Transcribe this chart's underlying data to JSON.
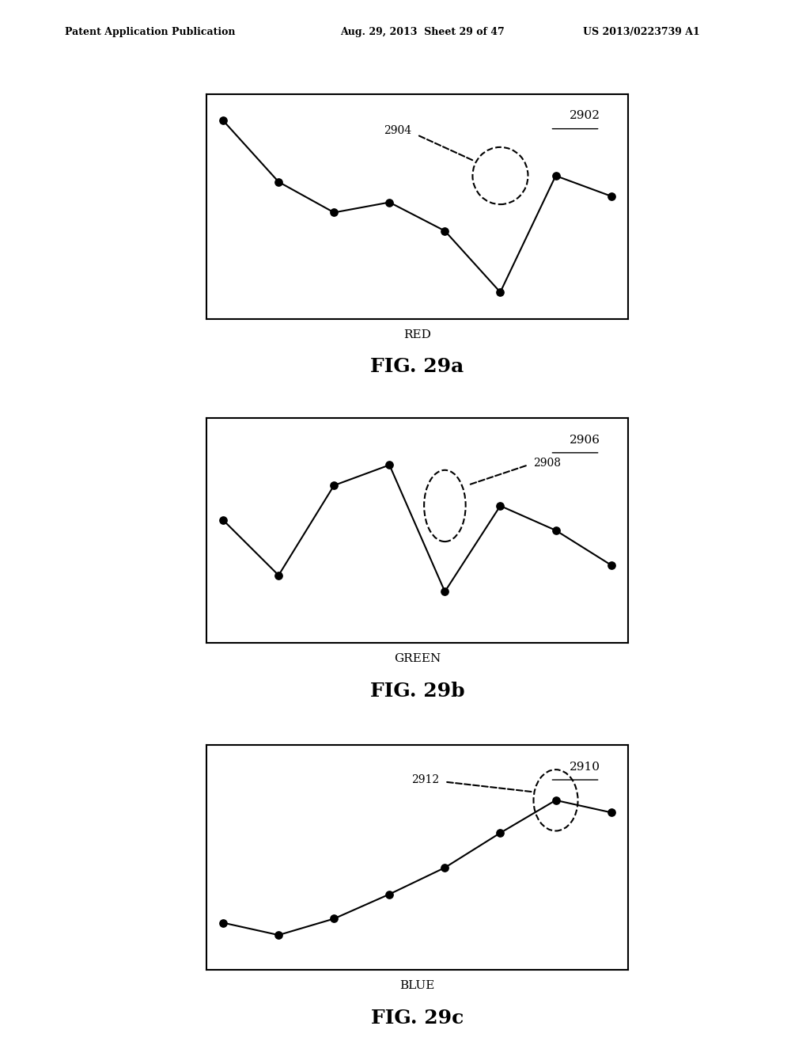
{
  "header_left": "Patent Application Publication",
  "header_mid": "Aug. 29, 2013  Sheet 29 of 47",
  "header_right": "US 2013/0223739 A1",
  "fig_a_label": "FIG. 29a",
  "fig_b_label": "FIG. 29b",
  "fig_c_label": "FIG. 29c",
  "red_label": "RED",
  "green_label": "GREEN",
  "blue_label": "BLUE",
  "red_ref": "2902",
  "red_arrow_ref": "2904",
  "green_ref": "2906",
  "green_arrow_ref": "2908",
  "blue_ref": "2910",
  "blue_arrow_ref": "2912",
  "red_x": [
    0,
    1,
    2,
    3,
    4,
    5,
    6,
    7
  ],
  "red_y": [
    0.92,
    0.62,
    0.47,
    0.52,
    0.38,
    0.08,
    0.65,
    0.55
  ],
  "green_x": [
    0,
    1,
    2,
    3,
    4,
    5,
    6,
    7
  ],
  "green_y": [
    0.55,
    0.28,
    0.72,
    0.82,
    0.2,
    0.62,
    0.5,
    0.33
  ],
  "blue_x": [
    0,
    1,
    2,
    3,
    4,
    5,
    6,
    7
  ],
  "blue_y": [
    0.18,
    0.12,
    0.2,
    0.32,
    0.45,
    0.62,
    0.78,
    0.72
  ],
  "bg_color": "#ffffff",
  "line_color": "#000000",
  "box_color": "#000000"
}
